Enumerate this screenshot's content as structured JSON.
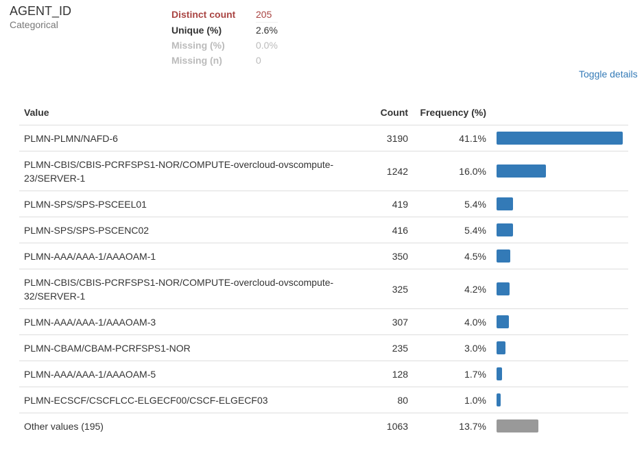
{
  "variable": {
    "name": "AGENT_ID",
    "type": "Categorical"
  },
  "stats": [
    {
      "label": "Distinct count",
      "value": "205",
      "style": "alert"
    },
    {
      "label": "Unique (%)",
      "value": "2.6%",
      "style": "normal"
    },
    {
      "label": "Missing (%)",
      "value": "0.0%",
      "style": "ignore"
    },
    {
      "label": "Missing (n)",
      "value": "0",
      "style": "ignore"
    }
  ],
  "toggle_label": "Toggle details",
  "table": {
    "headers": {
      "value": "Value",
      "count": "Count",
      "frequency": "Frequency (%)"
    },
    "rows": [
      {
        "value": "PLMN-PLMN/NAFD-6",
        "count": "3190",
        "pct": "41.1%",
        "frac": 0.411,
        "other": false
      },
      {
        "value": "PLMN-CBIS/CBIS-PCRFSPS1-NOR/COMPUTE-overcloud-ovscompute-23/SERVER-1",
        "count": "1242",
        "pct": "16.0%",
        "frac": 0.16,
        "other": false
      },
      {
        "value": "PLMN-SPS/SPS-PSCEEL01",
        "count": "419",
        "pct": "5.4%",
        "frac": 0.054,
        "other": false
      },
      {
        "value": "PLMN-SPS/SPS-PSCENC02",
        "count": "416",
        "pct": "5.4%",
        "frac": 0.054,
        "other": false
      },
      {
        "value": "PLMN-AAA/AAA-1/AAAOAM-1",
        "count": "350",
        "pct": "4.5%",
        "frac": 0.045,
        "other": false
      },
      {
        "value": "PLMN-CBIS/CBIS-PCRFSPS1-NOR/COMPUTE-overcloud-ovscompute-32/SERVER-1",
        "count": "325",
        "pct": "4.2%",
        "frac": 0.042,
        "other": false
      },
      {
        "value": "PLMN-AAA/AAA-1/AAAOAM-3",
        "count": "307",
        "pct": "4.0%",
        "frac": 0.04,
        "other": false
      },
      {
        "value": "PLMN-CBAM/CBAM-PCRFSPS1-NOR",
        "count": "235",
        "pct": "3.0%",
        "frac": 0.03,
        "other": false
      },
      {
        "value": "PLMN-AAA/AAA-1/AAAOAM-5",
        "count": "128",
        "pct": "1.7%",
        "frac": 0.017,
        "other": false
      },
      {
        "value": "PLMN-ECSCF/CSCFLCC-ELGECF00/CSCF-ELGECF03",
        "count": "80",
        "pct": "1.0%",
        "frac": 0.01,
        "other": false
      },
      {
        "value": "Other values (195)",
        "count": "1063",
        "pct": "13.7%",
        "frac": 0.137,
        "other": true
      }
    ]
  },
  "colors": {
    "bar": "#337ab7",
    "other_bar": "#999999",
    "alert": "#a94442",
    "link": "#337ab7"
  }
}
